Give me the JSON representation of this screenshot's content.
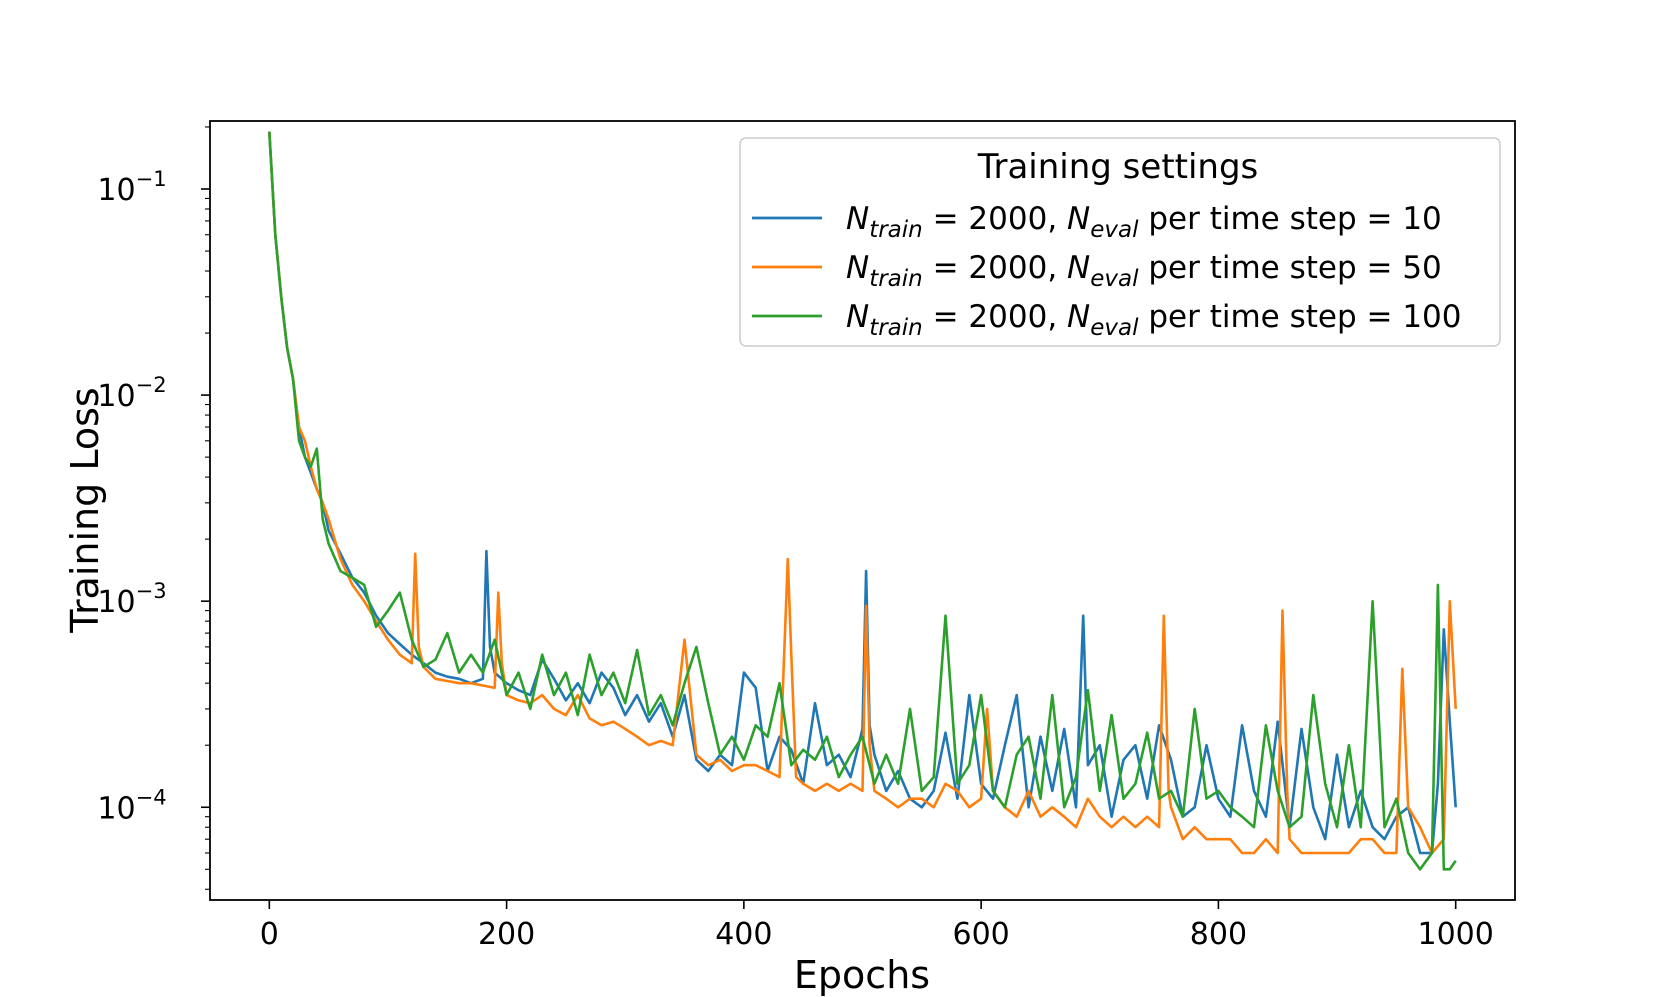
{
  "chart_data": {
    "type": "line",
    "title": "",
    "xlabel": "Epochs",
    "ylabel": "Training Loss",
    "xlim": [
      -50,
      1050
    ],
    "ylim_log10": [
      -4.45,
      -0.67
    ],
    "yscale": "log",
    "xticks": [
      0,
      200,
      400,
      600,
      800,
      1000
    ],
    "yticks": [
      {
        "exp": -1,
        "base": "10",
        "sup": "−1"
      },
      {
        "exp": -2,
        "base": "10",
        "sup": "−2"
      },
      {
        "exp": -3,
        "base": "10",
        "sup": "−3"
      },
      {
        "exp": -4,
        "base": "10",
        "sup": "−4"
      }
    ],
    "grid": false,
    "legend": {
      "title": "Training settings",
      "placement": "top-right",
      "entries": [
        {
          "series": 0,
          "n_sym": "N",
          "n_sub": "train",
          "eq1": " = 2000, ",
          "e_sym": "N",
          "e_sub": "eval",
          "rest": " per time step  = 10"
        },
        {
          "series": 1,
          "n_sym": "N",
          "n_sub": "train",
          "eq1": " = 2000, ",
          "e_sym": "N",
          "e_sub": "eval",
          "rest": " per time step  = 50"
        },
        {
          "series": 2,
          "n_sym": "N",
          "n_sub": "train",
          "eq1": " = 2000, ",
          "e_sym": "N",
          "e_sub": "eval",
          "rest": " per time step  = 100"
        }
      ]
    },
    "series": [
      {
        "color": "#1f77b4",
        "x": [
          0,
          5,
          10,
          15,
          20,
          25,
          30,
          35,
          40,
          45,
          50,
          60,
          70,
          80,
          90,
          100,
          110,
          120,
          130,
          140,
          150,
          160,
          170,
          180,
          183,
          186,
          190,
          200,
          210,
          220,
          230,
          240,
          250,
          260,
          270,
          280,
          290,
          300,
          310,
          320,
          330,
          340,
          350,
          360,
          370,
          380,
          390,
          400,
          410,
          420,
          430,
          440,
          450,
          460,
          470,
          480,
          490,
          500,
          503,
          506,
          510,
          520,
          530,
          540,
          550,
          560,
          570,
          580,
          590,
          600,
          610,
          620,
          630,
          640,
          650,
          660,
          670,
          680,
          686,
          690,
          700,
          710,
          720,
          730,
          740,
          750,
          760,
          770,
          780,
          790,
          800,
          810,
          820,
          830,
          840,
          850,
          860,
          870,
          880,
          890,
          900,
          910,
          920,
          930,
          940,
          950,
          960,
          970,
          980,
          985,
          990,
          995,
          1000
        ],
        "y": [
          0.19,
          0.06,
          0.03,
          0.017,
          0.012,
          0.007,
          0.005,
          0.0042,
          0.0035,
          0.003,
          0.0022,
          0.0017,
          0.0013,
          0.0011,
          0.00085,
          0.0007,
          0.00062,
          0.00055,
          0.0005,
          0.00045,
          0.00043,
          0.00042,
          0.0004,
          0.00042,
          0.00175,
          0.0006,
          0.00045,
          0.0004,
          0.00037,
          0.00035,
          0.00052,
          0.00042,
          0.00033,
          0.0004,
          0.00032,
          0.00045,
          0.00038,
          0.00028,
          0.00035,
          0.00026,
          0.00032,
          0.00022,
          0.00035,
          0.00017,
          0.00015,
          0.00018,
          0.00016,
          0.00045,
          0.00038,
          0.00015,
          0.00022,
          0.00019,
          0.00013,
          0.00032,
          0.00016,
          0.00018,
          0.00014,
          0.00024,
          0.0014,
          0.00025,
          0.00018,
          0.00012,
          0.00015,
          0.00011,
          0.0001,
          0.00012,
          0.00023,
          0.00011,
          0.00035,
          0.00013,
          0.00011,
          0.0002,
          0.00035,
          0.0001,
          0.00022,
          0.00012,
          0.00024,
          0.0001,
          0.00085,
          0.00016,
          0.0002,
          9e-05,
          0.00017,
          0.0002,
          0.00011,
          0.00025,
          0.00017,
          9e-05,
          0.0001,
          0.0002,
          0.00011,
          9e-05,
          0.00025,
          0.00012,
          9e-05,
          0.00026,
          8e-05,
          0.00024,
          0.0001,
          7e-05,
          0.00018,
          8e-05,
          0.00012,
          8e-05,
          7e-05,
          9e-05,
          0.0001,
          6e-05,
          6e-05,
          0.00013,
          0.00073,
          0.00026,
          0.0001
        ]
      },
      {
        "color": "#ff7f0e",
        "x": [
          0,
          5,
          10,
          15,
          20,
          25,
          30,
          35,
          40,
          45,
          50,
          60,
          70,
          80,
          90,
          100,
          110,
          120,
          123,
          126,
          130,
          140,
          150,
          160,
          170,
          180,
          190,
          193,
          196,
          200,
          210,
          220,
          230,
          240,
          250,
          260,
          270,
          280,
          290,
          300,
          310,
          320,
          330,
          340,
          350,
          360,
          370,
          380,
          390,
          400,
          410,
          420,
          430,
          437,
          440,
          444,
          450,
          460,
          470,
          480,
          490,
          500,
          503,
          506,
          510,
          520,
          530,
          540,
          550,
          560,
          570,
          580,
          590,
          600,
          605,
          610,
          620,
          630,
          640,
          650,
          660,
          670,
          680,
          690,
          700,
          710,
          720,
          730,
          740,
          750,
          754,
          758,
          760,
          770,
          780,
          790,
          800,
          810,
          820,
          830,
          840,
          850,
          854,
          858,
          860,
          870,
          880,
          890,
          900,
          910,
          920,
          930,
          940,
          950,
          955,
          960,
          970,
          980,
          990,
          995,
          1000
        ],
        "y": [
          0.19,
          0.06,
          0.03,
          0.017,
          0.012,
          0.007,
          0.006,
          0.0045,
          0.0035,
          0.003,
          0.0025,
          0.0016,
          0.0012,
          0.001,
          0.0008,
          0.00065,
          0.00055,
          0.0005,
          0.0017,
          0.0006,
          0.00048,
          0.00042,
          0.00041,
          0.0004,
          0.0004,
          0.00039,
          0.00038,
          0.0011,
          0.0005,
          0.00035,
          0.00033,
          0.00032,
          0.00035,
          0.0003,
          0.00028,
          0.00035,
          0.00027,
          0.00025,
          0.00026,
          0.00024,
          0.00022,
          0.0002,
          0.00021,
          0.0002,
          0.00065,
          0.00018,
          0.00016,
          0.00017,
          0.00015,
          0.00016,
          0.00016,
          0.00015,
          0.00014,
          0.0016,
          0.00055,
          0.00014,
          0.00013,
          0.00012,
          0.00013,
          0.00012,
          0.00013,
          0.00012,
          0.00095,
          0.0002,
          0.00012,
          0.00011,
          0.0001,
          0.00011,
          0.00011,
          0.0001,
          0.00013,
          0.00012,
          0.0001,
          0.00011,
          0.0003,
          0.00012,
          0.0001,
          9e-05,
          0.00012,
          9e-05,
          0.0001,
          9e-05,
          8e-05,
          0.00011,
          9e-05,
          8e-05,
          9e-05,
          8e-05,
          9e-05,
          8e-05,
          0.00085,
          0.00012,
          0.0001,
          7e-05,
          8e-05,
          7e-05,
          7e-05,
          7e-05,
          6e-05,
          6e-05,
          7e-05,
          6e-05,
          0.0009,
          0.00012,
          7e-05,
          6e-05,
          6e-05,
          6e-05,
          6e-05,
          6e-05,
          7e-05,
          7e-05,
          6e-05,
          6e-05,
          0.00047,
          0.0001,
          8e-05,
          6e-05,
          7e-05,
          0.001,
          0.0003
        ]
      },
      {
        "color": "#2ca02c",
        "x": [
          0,
          5,
          10,
          15,
          20,
          25,
          30,
          35,
          40,
          45,
          50,
          60,
          70,
          80,
          90,
          100,
          110,
          120,
          130,
          140,
          150,
          160,
          170,
          180,
          190,
          200,
          210,
          220,
          230,
          240,
          250,
          260,
          270,
          280,
          290,
          300,
          310,
          320,
          330,
          340,
          350,
          360,
          370,
          380,
          390,
          400,
          410,
          420,
          430,
          440,
          450,
          460,
          470,
          480,
          490,
          500,
          510,
          520,
          530,
          540,
          550,
          560,
          570,
          580,
          590,
          600,
          610,
          620,
          630,
          640,
          650,
          660,
          670,
          680,
          690,
          700,
          710,
          720,
          730,
          740,
          750,
          760,
          770,
          780,
          790,
          800,
          810,
          820,
          830,
          840,
          850,
          860,
          870,
          880,
          890,
          900,
          910,
          920,
          930,
          940,
          950,
          960,
          970,
          980,
          985,
          990,
          995,
          1000
        ],
        "y": [
          0.19,
          0.06,
          0.03,
          0.017,
          0.012,
          0.006,
          0.005,
          0.0045,
          0.0055,
          0.0025,
          0.0019,
          0.0014,
          0.0013,
          0.0012,
          0.00075,
          0.0009,
          0.0011,
          0.00065,
          0.00048,
          0.00052,
          0.0007,
          0.00045,
          0.00055,
          0.00045,
          0.00065,
          0.00035,
          0.00045,
          0.0003,
          0.00055,
          0.00035,
          0.00045,
          0.00028,
          0.00055,
          0.00035,
          0.00045,
          0.00032,
          0.00058,
          0.00028,
          0.00035,
          0.00025,
          0.0004,
          0.0006,
          0.00032,
          0.00018,
          0.00022,
          0.00017,
          0.00025,
          0.00022,
          0.0004,
          0.00016,
          0.00019,
          0.00017,
          0.00022,
          0.00014,
          0.00018,
          0.00022,
          0.00013,
          0.00018,
          0.00013,
          0.0003,
          0.00012,
          0.00014,
          0.00085,
          0.00013,
          0.00016,
          0.00035,
          0.00012,
          0.0001,
          0.00018,
          0.00022,
          0.00011,
          0.00035,
          0.0001,
          0.00014,
          0.00037,
          0.00012,
          0.00028,
          0.00011,
          0.00013,
          0.00023,
          0.00011,
          0.00012,
          9e-05,
          0.0003,
          0.00011,
          0.00012,
          0.0001,
          9e-05,
          8e-05,
          0.00025,
          0.00012,
          8e-05,
          9e-05,
          0.00035,
          0.00013,
          8e-05,
          0.0002,
          8e-05,
          0.001,
          8e-05,
          0.00011,
          6e-05,
          5e-05,
          6e-05,
          0.0012,
          5e-05,
          5e-05,
          5.5e-05
        ]
      }
    ]
  }
}
